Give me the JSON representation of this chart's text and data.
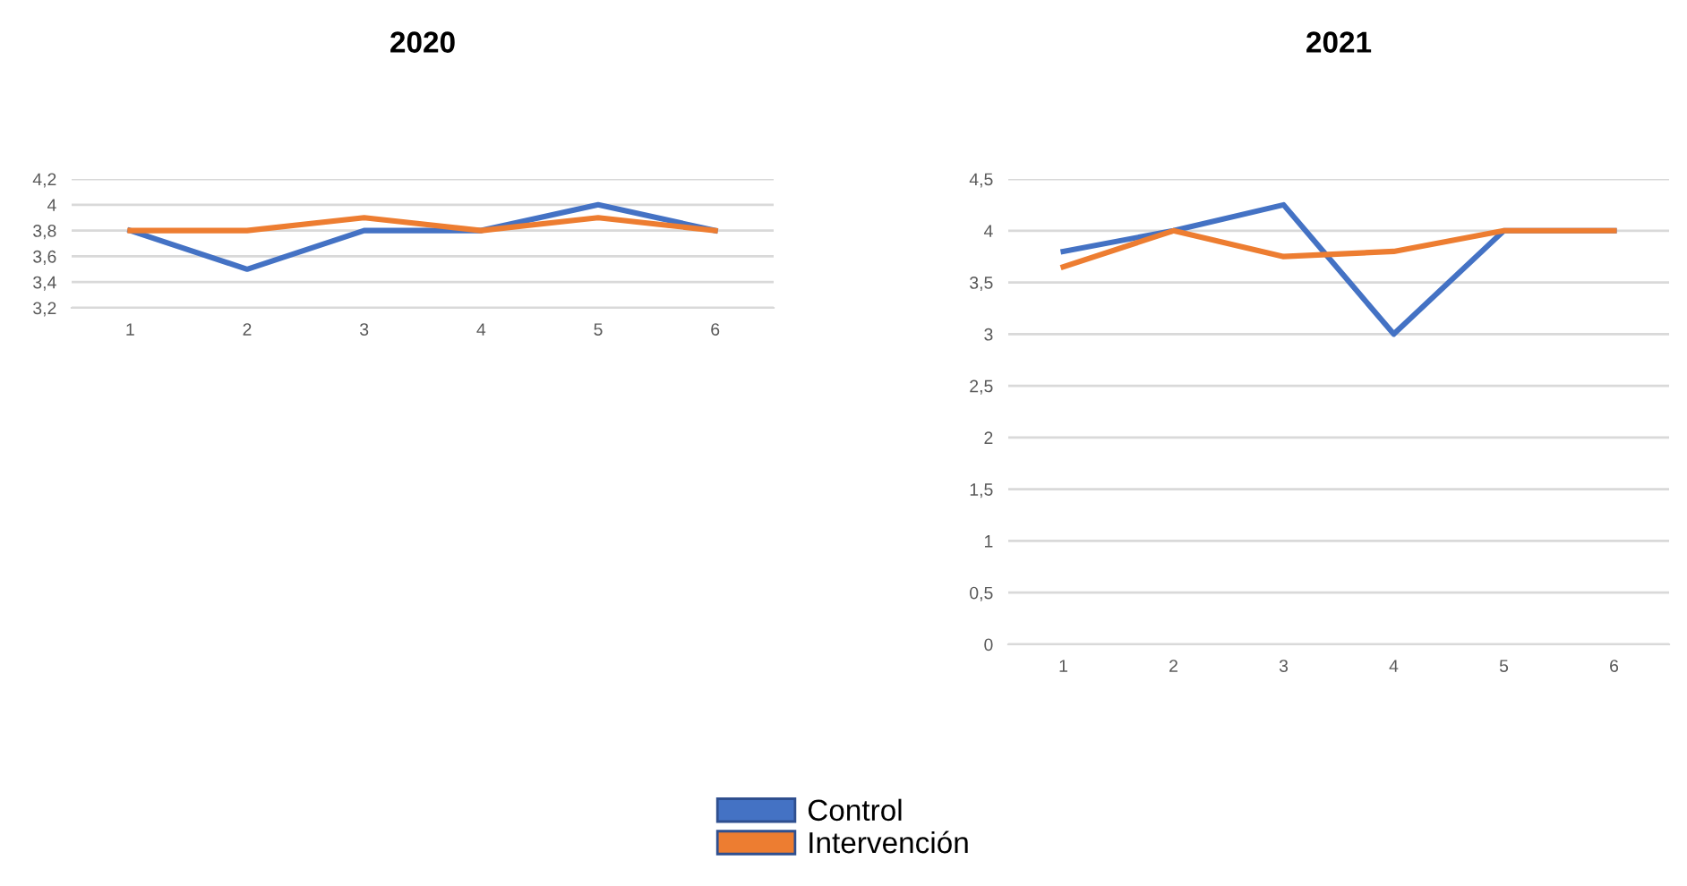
{
  "chart_data": [
    {
      "type": "line",
      "title": "2020",
      "categories": [
        "1",
        "2",
        "3",
        "4",
        "5",
        "6"
      ],
      "series": [
        {
          "name": "Control",
          "color": "#4472c4",
          "values": [
            3.8,
            3.5,
            3.8,
            3.8,
            4.0,
            3.8
          ]
        },
        {
          "name": "Intervención",
          "color": "#ed7d31",
          "values": [
            3.8,
            3.8,
            3.9,
            3.8,
            3.9,
            3.8
          ]
        }
      ],
      "ylim": [
        3.2,
        4.2
      ],
      "yticks": [
        {
          "value": 3.2,
          "label": "3,2"
        },
        {
          "value": 3.4,
          "label": "3,4"
        },
        {
          "value": 3.6,
          "label": "3,6"
        },
        {
          "value": 3.8,
          "label": "3,8"
        },
        4,
        {
          "value": 4.2,
          "label": "4,2"
        }
      ],
      "grid": "y",
      "legend": "bottom",
      "marker": "none",
      "line_style": "solid"
    },
    {
      "type": "line",
      "title": "2021",
      "categories": [
        "1",
        "2",
        "3",
        "4",
        "5",
        "6"
      ],
      "series": [
        {
          "name": "Control",
          "color": "#4472c4",
          "values": [
            3.8,
            4.0,
            4.25,
            3.0,
            4.0,
            4.0
          ]
        },
        {
          "name": "Intervención",
          "color": "#ed7d31",
          "values": [
            3.65,
            4.0,
            3.75,
            3.8,
            4.0,
            4.0
          ]
        }
      ],
      "ylim": [
        0,
        4.5
      ],
      "yticks": [
        0,
        {
          "value": 0.5,
          "label": "0,5"
        },
        1,
        {
          "value": 1.5,
          "label": "1,5"
        },
        2,
        {
          "value": 2.5,
          "label": "2,5"
        },
        3,
        {
          "value": 3.5,
          "label": "3,5"
        },
        4,
        {
          "value": 4.5,
          "label": "4,5"
        }
      ],
      "grid": "y",
      "legend": "bottom",
      "marker": "none",
      "line_style": "solid"
    }
  ]
}
